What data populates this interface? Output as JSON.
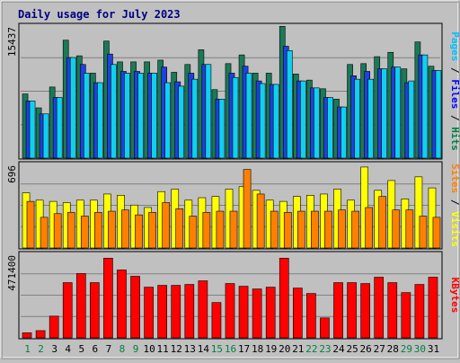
{
  "chart_data": {
    "type": "bar",
    "title": "Daily usage for July 2023",
    "categories": [
      "1",
      "2",
      "3",
      "4",
      "5",
      "6",
      "7",
      "8",
      "9",
      "10",
      "11",
      "12",
      "13",
      "14",
      "15",
      "16",
      "17",
      "18",
      "19",
      "20",
      "21",
      "22",
      "23",
      "24",
      "25",
      "26",
      "27",
      "28",
      "29",
      "30",
      "31"
    ],
    "weekend_days": [
      "1",
      "2",
      "8",
      "9",
      "15",
      "16",
      "22",
      "23",
      "29",
      "30"
    ],
    "panels": [
      {
        "id": "hits-files-pages",
        "max_label": "15437",
        "ymax": 15437,
        "side_labels": [
          {
            "text": "Pages",
            "color": "#00c0ff"
          },
          {
            "text": " / ",
            "color": "#000000"
          },
          {
            "text": "Files",
            "color": "#0000ff"
          },
          {
            "text": " / ",
            "color": "#000000"
          },
          {
            "text": "Hits",
            "color": "#008040"
          }
        ],
        "series": [
          {
            "name": "Hits",
            "color": "#1a7a55",
            "values": [
              7400,
              5800,
              8200,
              13600,
              11800,
              9800,
              13500,
              11100,
              11100,
              11100,
              11300,
              9900,
              10800,
              12500,
              7900,
              10900,
              11900,
              9800,
              9800,
              15200,
              9700,
              9000,
              8000,
              6800,
              10800,
              10900,
              11700,
              12200,
              10300,
              13400,
              10600
            ]
          },
          {
            "name": "Files",
            "color": "#2040e0",
            "values": [
              6600,
              5100,
              7000,
              11600,
              10800,
              8700,
              12000,
              10000,
              10000,
              9800,
              10500,
              8800,
              9800,
              10800,
              6800,
              9800,
              10600,
              8900,
              8500,
              12900,
              8900,
              8100,
              7000,
              5900,
              9500,
              10000,
              10300,
              10500,
              8700,
              11900,
              10100
            ]
          },
          {
            "name": "Pages",
            "color": "#10d0f0",
            "values": [
              6600,
              5100,
              7000,
              11600,
              9800,
              8700,
              10800,
              9800,
              9800,
              9800,
              8700,
              8300,
              9100,
              10800,
              6800,
              9300,
              9800,
              8600,
              8500,
              12400,
              8900,
              8100,
              7000,
              5900,
              9100,
              9100,
              10300,
              10500,
              8900,
              11900,
              10100
            ]
          }
        ]
      },
      {
        "id": "visits-sites",
        "max_label": "696",
        "ymax": 696,
        "side_labels": [
          {
            "text": "Sites",
            "color": "#ff8000"
          },
          {
            "text": " / ",
            "color": "#000000"
          },
          {
            "text": "Visits",
            "color": "#ffff00"
          }
        ],
        "series": [
          {
            "name": "Visits",
            "color": "#ffff00",
            "values": [
              450,
              390,
              380,
              370,
              390,
              390,
              440,
              430,
              350,
              330,
              460,
              480,
              390,
              410,
              420,
              480,
              500,
              470,
              390,
              380,
              420,
              430,
              440,
              480,
              390,
              660,
              470,
              550,
              400,
              580,
              490
            ]
          },
          {
            "name": "Sites",
            "color": "#ff8000",
            "values": [
              380,
              250,
              280,
              290,
              260,
              290,
              300,
              310,
              270,
              290,
              370,
              320,
              260,
              290,
              300,
              300,
              640,
              440,
              300,
              290,
              300,
              300,
              300,
              310,
              300,
              330,
              420,
              310,
              310,
              260,
              250
            ]
          }
        ]
      },
      {
        "id": "kbytes",
        "max_label": "471400",
        "ymax": 471400,
        "side_labels": [
          {
            "text": "KBytes",
            "color": "#ff0000"
          }
        ],
        "series": [
          {
            "name": "KBytes",
            "color": "#ff0000",
            "values": [
              28000,
              40000,
              120000,
              305000,
              355000,
              305000,
              440000,
              375000,
              340000,
              280000,
              290000,
              290000,
              295000,
              315000,
              195000,
              300000,
              285000,
              270000,
              280000,
              440000,
              275000,
              245000,
              110000,
              305000,
              305000,
              300000,
              335000,
              305000,
              250000,
              295000,
              335000
            ]
          }
        ]
      }
    ]
  }
}
